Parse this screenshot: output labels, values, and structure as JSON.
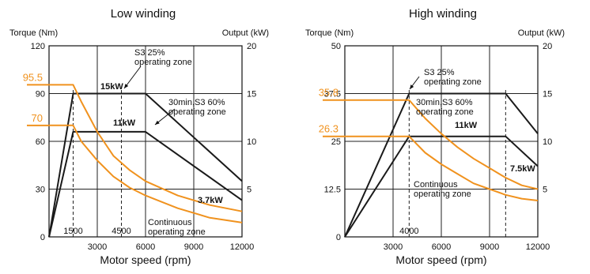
{
  "colors": {
    "black": "#1a1a1a",
    "orange": "#f0921e"
  },
  "chart_data": [
    {
      "type": "line",
      "title": "Low winding",
      "xlabel": "Motor speed (rpm)",
      "ylabel_left": "Torque (Nm)",
      "ylabel_right": "Output (kW)",
      "xlim": [
        0,
        12000
      ],
      "ylim_left": [
        0,
        120
      ],
      "ylim_right": [
        0,
        20
      ],
      "x_ticks": [
        3000,
        6000,
        9000,
        12000
      ],
      "x_tick_labels": [
        "3000",
        "6000",
        "9000",
        "12000"
      ],
      "y_ticks_left": [
        0,
        30,
        60,
        90,
        120
      ],
      "y_tick_labels_left": [
        "0",
        "30",
        "60",
        "90",
        "120"
      ],
      "y_ticks_right": [
        5,
        10,
        15,
        20
      ],
      "y_tick_labels_right": [
        "5",
        "10",
        "15",
        "20"
      ],
      "grid": true,
      "highlight_values": [
        {
          "label": "95.5",
          "value": 95.5
        },
        {
          "label": "70",
          "value": 70
        }
      ],
      "marker_lines": [
        {
          "x": 1500,
          "label": "1500"
        },
        {
          "x": 4500,
          "label": "4500"
        }
      ],
      "series": [
        {
          "name": "15kW",
          "style": "black",
          "points": [
            [
              0,
              0
            ],
            [
              1500,
              90
            ],
            [
              6000,
              90
            ],
            [
              12000,
              35
            ]
          ]
        },
        {
          "name": "11kW",
          "style": "black",
          "points": [
            [
              0,
              0
            ],
            [
              1500,
              66
            ],
            [
              6000,
              66
            ],
            [
              12000,
              23
            ]
          ]
        },
        {
          "name": "3.7kW",
          "style": "black",
          "points": []
        },
        {
          "name": "",
          "style": "orange",
          "points": [
            [
              0,
              95.5
            ],
            [
              1500,
              95.5
            ],
            [
              2000,
              85
            ],
            [
              3000,
              66
            ],
            [
              4000,
              51
            ],
            [
              5000,
              42
            ],
            [
              6000,
              35
            ],
            [
              8000,
              26
            ],
            [
              10000,
              20
            ],
            [
              12000,
              16
            ]
          ]
        },
        {
          "name": "",
          "style": "orange",
          "points": [
            [
              0,
              70
            ],
            [
              1500,
              70
            ],
            [
              2000,
              60
            ],
            [
              3000,
              48
            ],
            [
              4000,
              38
            ],
            [
              5000,
              31
            ],
            [
              6000,
              26
            ],
            [
              8000,
              18
            ],
            [
              10000,
              12
            ],
            [
              12000,
              9
            ]
          ]
        }
      ],
      "annotations": [
        {
          "id": "s3",
          "lines": [
            "S3 25%",
            "operating zone"
          ]
        },
        {
          "id": "s60",
          "lines": [
            "30min,S3 60%",
            "operating zone"
          ]
        },
        {
          "id": "cont",
          "lines": [
            "Continuous",
            "operating zone"
          ]
        }
      ]
    },
    {
      "type": "line",
      "title": "High winding",
      "xlabel": "Motor speed (rpm)",
      "ylabel_left": "Torque (Nm)",
      "ylabel_right": "Output (kW)",
      "xlim": [
        0,
        12000
      ],
      "ylim_left": [
        0,
        50
      ],
      "ylim_right": [
        0,
        20
      ],
      "x_ticks": [
        3000,
        6000,
        9000,
        12000
      ],
      "x_tick_labels": [
        "3000",
        "6000",
        "9000",
        "12000"
      ],
      "y_ticks_left": [
        0,
        12.5,
        25,
        37.5,
        50
      ],
      "y_tick_labels_left": [
        "0",
        "12.5",
        "25",
        "37.5",
        "50"
      ],
      "y_ticks_right": [
        5,
        10,
        15,
        20
      ],
      "y_tick_labels_right": [
        "5",
        "10",
        "15",
        "20"
      ],
      "grid": true,
      "highlight_values": [
        {
          "label": "35.8",
          "value": 35.8
        },
        {
          "label": "26.3",
          "value": 26.3
        }
      ],
      "marker_lines": [
        {
          "x": 4000,
          "label": "4000"
        },
        {
          "x": 10000,
          "label": ""
        }
      ],
      "series": [
        {
          "name": "",
          "style": "black",
          "points": [
            [
              0,
              0
            ],
            [
              4000,
              37.5
            ],
            [
              10000,
              37.5
            ],
            [
              12000,
              27
            ]
          ]
        },
        {
          "name": "11kW",
          "style": "black",
          "points": [
            [
              0,
              0
            ],
            [
              4000,
              26.3
            ],
            [
              10000,
              26.3
            ],
            [
              12000,
              18.5
            ]
          ]
        },
        {
          "name": "7.5kW",
          "style": "black",
          "points": []
        },
        {
          "name": "",
          "style": "orange",
          "points": [
            [
              0,
              35.8
            ],
            [
              4000,
              35.8
            ],
            [
              5000,
              31
            ],
            [
              6000,
              27
            ],
            [
              7000,
              23.5
            ],
            [
              8000,
              20.5
            ],
            [
              9000,
              18
            ],
            [
              10000,
              15.5
            ],
            [
              11000,
              13.5
            ],
            [
              12000,
              12.5
            ]
          ]
        },
        {
          "name": "",
          "style": "orange",
          "points": [
            [
              0,
              26.3
            ],
            [
              4000,
              26.3
            ],
            [
              5000,
              22
            ],
            [
              6000,
              19
            ],
            [
              7000,
              16.5
            ],
            [
              8000,
              14
            ],
            [
              9000,
              12.5
            ],
            [
              10000,
              11
            ],
            [
              11000,
              10
            ],
            [
              12000,
              9.5
            ]
          ]
        }
      ],
      "annotations": [
        {
          "id": "s3",
          "lines": [
            "S3 25%",
            "operating zone"
          ]
        },
        {
          "id": "s60",
          "lines": [
            "30min,S3 60%",
            "operating zone"
          ]
        },
        {
          "id": "cont",
          "lines": [
            "Continuous",
            "operating zone"
          ]
        }
      ]
    }
  ]
}
